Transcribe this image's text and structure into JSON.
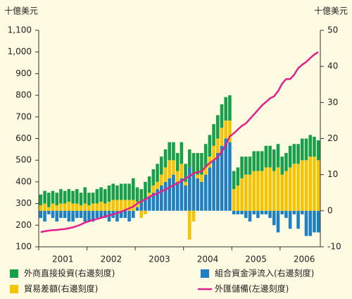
{
  "chart_data": {
    "type": "bar",
    "y_label": "十億美元",
    "y2_label": "十億美元",
    "categories": [
      null,
      null,
      null,
      null,
      null,
      null,
      "2001",
      null,
      null,
      null,
      null,
      null,
      null,
      null,
      null,
      null,
      null,
      null,
      "2002",
      null,
      null,
      null,
      null,
      null,
      null,
      null,
      null,
      null,
      null,
      null,
      "2003",
      null,
      null,
      null,
      null,
      null,
      null,
      null,
      null,
      null,
      null,
      null,
      "2004",
      null,
      null,
      null,
      null,
      null,
      null,
      null,
      null,
      null,
      null,
      null,
      "2005",
      null,
      null,
      null,
      null,
      null,
      null,
      null,
      null,
      null,
      null,
      null,
      "2006",
      null,
      null,
      null
    ],
    "ylim": [
      100,
      1100
    ],
    "yticks": [
      100,
      200,
      300,
      400,
      500,
      600,
      700,
      800,
      900,
      {
        "value": 1000,
        "label": "1,000"
      },
      {
        "value": 1100,
        "label": "1,100"
      }
    ],
    "y2lim": [
      -10,
      50
    ],
    "y2ticks": [
      -10,
      0,
      10,
      20,
      30,
      40,
      50
    ],
    "series": [
      {
        "name": "外商直接投資(右邊刻度)",
        "type": "bar",
        "axis": "y2",
        "color": "#17a04a",
        "values": [
          3,
          3.5,
          4,
          3.5,
          3.5,
          4,
          3.5,
          3.5,
          3.5,
          4,
          3.5,
          4.5,
          3.5,
          3,
          4,
          4,
          4,
          4.5,
          4.5,
          4,
          4.5,
          4.5,
          4.5,
          6,
          4,
          4,
          5,
          4.5,
          4.5,
          5,
          5,
          5,
          5,
          5,
          5,
          6,
          5,
          5,
          6,
          6,
          6,
          6.5,
          6,
          6,
          6.5,
          6.5,
          6.5,
          7,
          5,
          5,
          6,
          5,
          5,
          5.5,
          5.5,
          5.5,
          6,
          6,
          6,
          6.5,
          5,
          5,
          6,
          5.5,
          5.5,
          6,
          6,
          6,
          5.5,
          5.5
        ]
      },
      {
        "name": "組合資金淨流入(右邊刻度)",
        "type": "bar",
        "axis": "y2",
        "color": "#1d7fc4",
        "values": [
          -2,
          -3,
          -1,
          -2,
          -3,
          -2,
          -2,
          -3,
          -3,
          -2,
          -2,
          -3,
          -3,
          -3,
          -2,
          -2,
          -2,
          -3,
          -2,
          -3,
          -2,
          -2,
          -3,
          -2,
          1,
          2,
          3,
          4,
          5,
          6,
          7,
          8,
          9,
          10,
          8,
          9,
          7,
          12,
          10,
          9,
          8,
          10,
          12,
          14,
          16,
          18,
          20,
          19,
          -1,
          -1,
          -1,
          -2,
          -3,
          -1,
          -2,
          -1,
          -1,
          -2,
          -4,
          -6,
          -1,
          -2,
          -5,
          -1,
          -5,
          -1,
          -7,
          -7,
          -6,
          -6
        ]
      },
      {
        "name": "貿易差額(右邊刻度)",
        "type": "bar",
        "axis": "y2",
        "color": "#f5c300",
        "values": [
          1.5,
          2,
          1,
          2,
          1.5,
          2,
          2,
          2.5,
          2,
          2,
          1.5,
          2,
          1.5,
          2,
          2,
          2.5,
          2,
          2.5,
          3,
          3,
          3,
          3,
          3,
          3,
          1.5,
          -2,
          -1,
          1,
          2,
          2,
          3,
          4,
          5,
          4,
          3,
          4,
          1,
          -8,
          -3,
          1,
          2,
          2,
          3,
          4,
          4,
          5,
          5,
          6,
          6,
          7,
          9,
          10,
          10,
          11,
          11,
          11,
          12,
          12,
          11,
          12,
          10,
          11,
          12,
          13,
          13,
          14,
          14,
          15,
          15,
          14
        ]
      },
      {
        "name": "外匯儲備(左邊刻度)",
        "type": "line",
        "axis": "y",
        "color": "#e0208c",
        "values": [
          168,
          172,
          175,
          177,
          178,
          180,
          182,
          186,
          190,
          196,
          203,
          212,
          218,
          224,
          229,
          234,
          240,
          245,
          250,
          256,
          262,
          270,
          278,
          286,
          300,
          310,
          320,
          330,
          340,
          346,
          356,
          365,
          375,
          384,
          395,
          403,
          417,
          425,
          440,
          445,
          448,
          470,
          487,
          500,
          515,
          540,
          570,
          610,
          624,
          642,
          659,
          670,
          691,
          711,
          732,
          753,
          769,
          786,
          795,
          819,
          853,
          875,
          875,
          895,
          925,
          941,
          954,
          972,
          988,
          1000
        ]
      }
    ]
  }
}
